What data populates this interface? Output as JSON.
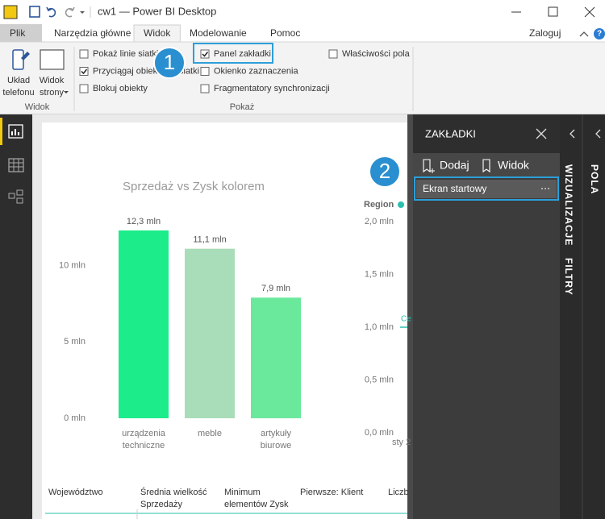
{
  "window": {
    "title": "cw1 — Power BI Desktop"
  },
  "ribbon": {
    "tabs": [
      "Plik",
      "Narzędzia główne",
      "Widok",
      "Modelowanie",
      "Pomoc"
    ],
    "active_tab": 2,
    "sign_in": "Zaloguj",
    "view_group": {
      "label": "Widok",
      "buttons": [
        "Układ telefonu",
        "Widok strony"
      ]
    },
    "show_group": {
      "label": "Pokaż",
      "options": [
        {
          "label": "Pokaż linie siatki",
          "checked": false
        },
        {
          "label": "Przyciągaj obiekty do siatki",
          "checked": true
        },
        {
          "label": "Blokuj obiekty",
          "checked": false
        },
        {
          "label": "Panel zakładki",
          "checked": true
        },
        {
          "label": "Okienko zaznaczenia",
          "checked": false
        },
        {
          "label": "Fragmentatory synchronizacji",
          "checked": false
        },
        {
          "label": "Właściwości pola",
          "checked": false
        }
      ]
    }
  },
  "callouts": [
    "1",
    "2"
  ],
  "canvas": {
    "chart_data": [
      {
        "type": "bar",
        "title": "Sprzedaż vs Zysk kolorem",
        "categories": [
          "urządzenia techniczne",
          "meble",
          "artykuły biurowe"
        ],
        "values": [
          12.3,
          11.1,
          7.9
        ],
        "value_labels": [
          "12,3 mln",
          "11,1 mln",
          "7,9 mln"
        ],
        "colors": [
          "#1cec8a",
          "#a9dcb8",
          "#6ae89b"
        ],
        "ylim": [
          0,
          13
        ],
        "yticks": [
          {
            "value": 0,
            "label": "0 mln"
          },
          {
            "value": 5,
            "label": "5 mln"
          },
          {
            "value": 10,
            "label": "10 mln"
          }
        ],
        "grid": false
      },
      {
        "type": "line",
        "legend_title": "Region",
        "color": "#2bbfae",
        "categories": [
          "sty 2"
        ],
        "annotations": [
          "Ce"
        ],
        "ylim": [
          0,
          2
        ],
        "yticks": [
          {
            "value": 0,
            "label": "0,0 mln"
          },
          {
            "value": 0.5,
            "label": "0,5 mln"
          },
          {
            "value": 1,
            "label": "1,0 mln"
          },
          {
            "value": 1.5,
            "label": "1,5 mln"
          },
          {
            "value": 2,
            "label": "2,0 mln"
          }
        ]
      }
    ],
    "table": {
      "columns": [
        "Województwo",
        "Średnia wielkość Sprzedaży",
        "Minimum elementów Zysk",
        "Pierwsze: Klient",
        "Liczb"
      ]
    }
  },
  "bookmarks_pane": {
    "title": "ZAKŁADKI",
    "actions": [
      "Dodaj",
      "Widok"
    ],
    "items": [
      "Ekran startowy"
    ]
  },
  "side_tabs": [
    "WIZUALIZACJE",
    "FILTRY",
    "POLA"
  ]
}
